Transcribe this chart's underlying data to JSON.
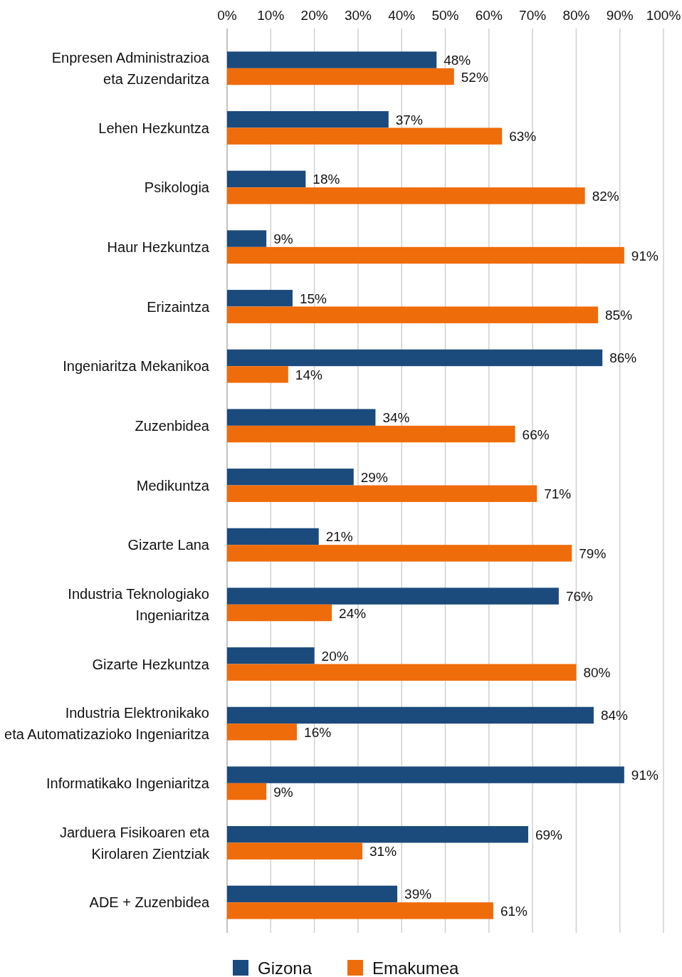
{
  "chart_data": {
    "type": "bar",
    "orientation": "horizontal",
    "categories": [
      "Enpresen Administrazioa\neta Zuzendaritza",
      "Lehen Hezkuntza",
      "Psikologia",
      "Haur Hezkuntza",
      "Erizaintza",
      "Ingeniaritza Mekanikoa",
      "Zuzenbidea",
      "Medikuntza",
      "Gizarte Lana",
      "Industria Teknologiako\nIngeniaritza",
      "Gizarte Hezkuntza",
      "Industria Elektronikako\neta Automatizazioko Ingeniaritza",
      "Informatikako Ingeniaritza",
      "Jarduera Fisikoaren eta\nKirolaren Zientziak",
      "ADE + Zuzenbidea"
    ],
    "series": [
      {
        "name": "Gizona",
        "color": "#1b4a7c",
        "values": [
          48,
          37,
          18,
          9,
          15,
          86,
          34,
          29,
          21,
          76,
          20,
          84,
          91,
          69,
          39
        ],
        "value_labels": [
          "48%",
          "37%",
          "18%",
          "9%",
          "15%",
          "86%",
          "34%",
          "29%",
          "21%",
          "76%",
          "20%",
          "84%",
          "91%",
          "69%",
          "39%"
        ]
      },
      {
        "name": "Emakumea",
        "color": "#ef6c0a",
        "values": [
          52,
          63,
          82,
          91,
          85,
          14,
          66,
          71,
          79,
          24,
          80,
          16,
          9,
          31,
          61
        ],
        "value_labels": [
          "52%",
          "63%",
          "82%",
          "91%",
          "85%",
          "14%",
          "66%",
          "71%",
          "79%",
          "24%",
          "80%",
          "16%",
          "9%",
          "31%",
          "61%"
        ]
      }
    ],
    "xlim": [
      0,
      100
    ],
    "xticks": [
      {
        "value": 0,
        "label": "0%"
      },
      {
        "value": 10,
        "label": "10%"
      },
      {
        "value": 20,
        "label": "20%"
      },
      {
        "value": 30,
        "label": "30%"
      },
      {
        "value": 40,
        "label": "40%"
      },
      {
        "value": 50,
        "label": "50%"
      },
      {
        "value": 60,
        "label": "60%"
      },
      {
        "value": 70,
        "label": "70%"
      },
      {
        "value": 80,
        "label": "80%"
      },
      {
        "value": 90,
        "label": "90%"
      },
      {
        "value": 100,
        "label": "100%"
      }
    ],
    "grid": "x",
    "legend": "bottom"
  }
}
